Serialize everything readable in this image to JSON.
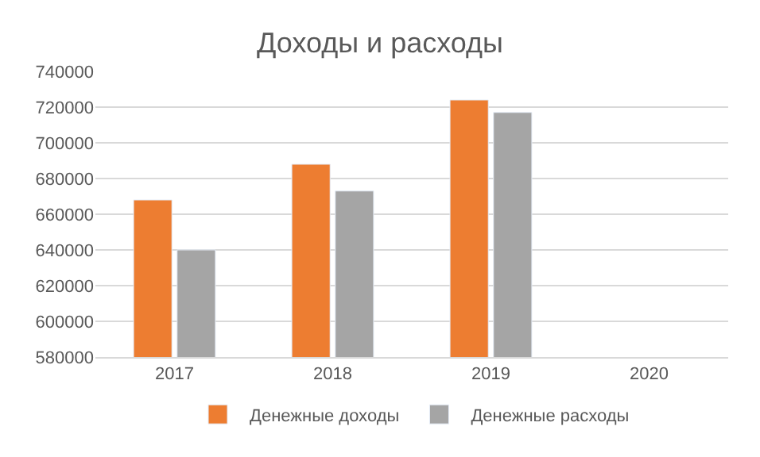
{
  "chart_data": {
    "type": "bar",
    "title": "Доходы и расходы",
    "categories": [
      "2017",
      "2018",
      "2019",
      "2020"
    ],
    "series": [
      {
        "name": "Денежные доходы",
        "color": "#ed7d31",
        "values": [
          668000,
          688000,
          724000,
          null
        ]
      },
      {
        "name": "Денежные расходы",
        "color": "#a5a5a5",
        "values": [
          640000,
          673000,
          717000,
          null
        ]
      }
    ],
    "ylim": [
      580000,
      740000
    ],
    "yticks": [
      580000,
      600000,
      620000,
      640000,
      660000,
      680000,
      700000,
      720000,
      740000
    ],
    "grid": "y",
    "legend": "bottom"
  }
}
